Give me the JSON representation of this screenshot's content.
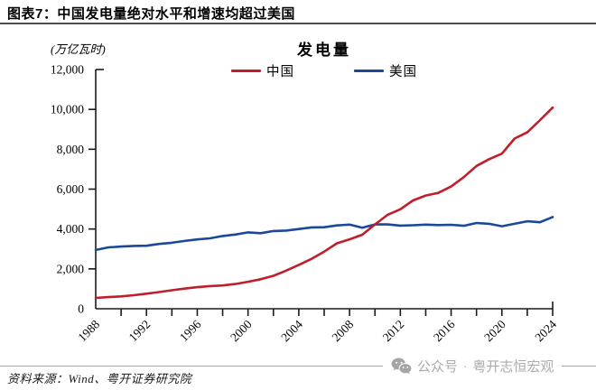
{
  "header": {
    "title": "图表7：中国发电量绝对水平和增速均超过美国"
  },
  "chart_data": {
    "type": "line",
    "title": "发电量",
    "unit_label": "(万亿瓦时)",
    "grid": false,
    "legend_position": "top-center",
    "ylim": [
      0,
      12000
    ],
    "yticks": [
      0,
      2000,
      4000,
      6000,
      8000,
      10000,
      12000
    ],
    "ytick_labels": [
      "0",
      "2,000",
      "4,000",
      "6,000",
      "8,000",
      "10,000",
      "12,000"
    ],
    "xtick_minor_step_years": 2,
    "xtick_labels": [
      "1988",
      "1992",
      "1996",
      "2000",
      "2004",
      "2008",
      "2012",
      "2016",
      "2020",
      "2024"
    ],
    "x": [
      1988,
      1989,
      1990,
      1991,
      1992,
      1993,
      1994,
      1995,
      1996,
      1997,
      1998,
      1999,
      2000,
      2001,
      2002,
      2003,
      2004,
      2005,
      2006,
      2007,
      2008,
      2009,
      2010,
      2011,
      2012,
      2013,
      2014,
      2015,
      2016,
      2017,
      2018,
      2019,
      2020,
      2021,
      2022,
      2023,
      2024
    ],
    "series": [
      {
        "name": "中国",
        "color": "#C01E2A",
        "values": [
          545,
          585,
          621,
          678,
          754,
          839,
          928,
          1008,
          1081,
          1136,
          1167,
          1239,
          1356,
          1481,
          1654,
          1911,
          2203,
          2500,
          2866,
          3282,
          3482,
          3715,
          4228,
          4713,
          4988,
          5432,
          5680,
          5815,
          6133,
          6604,
          7166,
          7504,
          7779,
          8534,
          8849,
          9456,
          10087
        ]
      },
      {
        "name": "美国",
        "color": "#1B4898",
        "values": [
          2950,
          3080,
          3120,
          3150,
          3160,
          3250,
          3310,
          3400,
          3480,
          3530,
          3650,
          3720,
          3830,
          3790,
          3900,
          3920,
          4000,
          4080,
          4090,
          4180,
          4220,
          4060,
          4230,
          4230,
          4170,
          4190,
          4220,
          4200,
          4210,
          4160,
          4300,
          4260,
          4140,
          4260,
          4390,
          4340,
          4600
        ]
      }
    ]
  },
  "footer": {
    "source": "资料来源：Wind、粤开证券研究院",
    "watermark": {
      "icon": "wechat-icon",
      "label": "公众号",
      "separator": "·",
      "name": "粤开志恒宏观"
    }
  }
}
